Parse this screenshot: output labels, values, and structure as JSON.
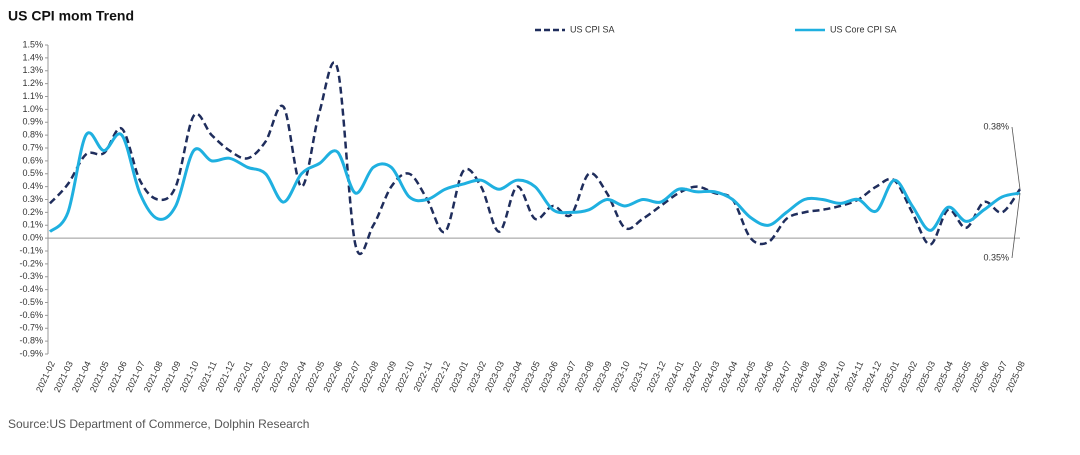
{
  "chart_data": {
    "type": "line",
    "title": "US CPI mom Trend",
    "source": "Source:US Department of Commerce, Dolphin Research",
    "categories": [
      "2021-02",
      "2021-03",
      "2021-04",
      "2021-05",
      "2021-06",
      "2021-07",
      "2021-08",
      "2021-09",
      "2021-10",
      "2021-11",
      "2021-12",
      "2022-01",
      "2022-02",
      "2022-03",
      "2022-04",
      "2022-05",
      "2022-06",
      "2022-07",
      "2022-08",
      "2022-09",
      "2022-10",
      "2022-11",
      "2022-12",
      "2023-01",
      "2023-02",
      "2023-03",
      "2023-04",
      "2023-05",
      "2023-06",
      "2023-07",
      "2023-08",
      "2023-09",
      "2023-10",
      "2023-11",
      "2023-12",
      "2024-01",
      "2024-02",
      "2024-03",
      "2024-04",
      "2024-05",
      "2024-06",
      "2024-07",
      "2024-08",
      "2024-09",
      "2024-10",
      "2024-11",
      "2024-12",
      "2025-01",
      "2025-02",
      "2025-03",
      "2025-04",
      "2025-05",
      "2025-06",
      "2025-07",
      "2025-08"
    ],
    "series": [
      {
        "name": "US CPI SA",
        "color": "#1f2d5c",
        "dash": true,
        "values": [
          0.27,
          0.42,
          0.65,
          0.66,
          0.85,
          0.45,
          0.3,
          0.4,
          0.95,
          0.8,
          0.68,
          0.62,
          0.75,
          1.02,
          0.4,
          0.98,
          1.32,
          -0.05,
          0.1,
          0.4,
          0.5,
          0.3,
          0.05,
          0.52,
          0.4,
          0.05,
          0.4,
          0.15,
          0.25,
          0.18,
          0.5,
          0.35,
          0.08,
          0.15,
          0.25,
          0.35,
          0.4,
          0.35,
          0.3,
          0.0,
          -0.03,
          0.15,
          0.2,
          0.22,
          0.25,
          0.3,
          0.4,
          0.45,
          0.2,
          -0.05,
          0.22,
          0.08,
          0.28,
          0.2,
          0.38
        ],
        "value_labels": [
          null,
          null,
          null,
          null,
          null,
          null,
          null,
          null,
          null,
          null,
          null,
          null,
          null,
          null,
          null,
          null,
          null,
          null,
          null,
          null,
          null,
          null,
          null,
          null,
          null,
          null,
          null,
          null,
          null,
          null,
          null,
          null,
          null,
          null,
          null,
          null,
          null,
          null,
          null,
          null,
          null,
          null,
          null,
          null,
          null,
          null,
          null,
          null,
          null,
          null,
          null,
          null,
          null,
          null,
          "0.38%"
        ]
      },
      {
        "name": "US Core CPI SA",
        "color": "#1fb0e0",
        "dash": false,
        "values": [
          0.05,
          0.2,
          0.8,
          0.68,
          0.8,
          0.35,
          0.15,
          0.25,
          0.68,
          0.6,
          0.62,
          0.55,
          0.5,
          0.28,
          0.5,
          0.58,
          0.67,
          0.35,
          0.55,
          0.55,
          0.32,
          0.3,
          0.38,
          0.42,
          0.45,
          0.38,
          0.45,
          0.4,
          0.22,
          0.2,
          0.22,
          0.3,
          0.25,
          0.3,
          0.28,
          0.38,
          0.36,
          0.36,
          0.3,
          0.16,
          0.1,
          0.2,
          0.3,
          0.3,
          0.27,
          0.3,
          0.21,
          0.45,
          0.25,
          0.06,
          0.24,
          0.13,
          0.22,
          0.32,
          0.35
        ],
        "value_labels": [
          null,
          null,
          null,
          null,
          null,
          null,
          null,
          null,
          null,
          null,
          null,
          null,
          null,
          null,
          null,
          null,
          null,
          null,
          null,
          null,
          null,
          null,
          null,
          null,
          null,
          null,
          null,
          null,
          null,
          null,
          null,
          null,
          null,
          null,
          null,
          null,
          null,
          null,
          null,
          null,
          null,
          null,
          null,
          null,
          null,
          null,
          null,
          null,
          null,
          null,
          null,
          null,
          null,
          null,
          "0.35%"
        ]
      }
    ],
    "ylim": [
      -0.9,
      1.5
    ],
    "yticks": [
      {
        "value": 1.5,
        "label": "1.5%"
      },
      {
        "value": 1.4,
        "label": "1.4%"
      },
      {
        "value": 1.3,
        "label": "1.3%"
      },
      {
        "value": 1.2,
        "label": "1.2%"
      },
      {
        "value": 1.1,
        "label": "1.1%"
      },
      {
        "value": 1.0,
        "label": "1.0%"
      },
      {
        "value": 0.9,
        "label": "0.9%"
      },
      {
        "value": 0.8,
        "label": "0.8%"
      },
      {
        "value": 0.7,
        "label": "0.7%"
      },
      {
        "value": 0.6,
        "label": "0.6%"
      },
      {
        "value": 0.5,
        "label": "0.5%"
      },
      {
        "value": 0.4,
        "label": "0.4%"
      },
      {
        "value": 0.3,
        "label": "0.3%"
      },
      {
        "value": 0.2,
        "label": "0.2%"
      },
      {
        "value": 0.1,
        "label": "0.1%"
      },
      {
        "value": 0,
        "label": "0.0%"
      },
      {
        "value": -0.1,
        "label": "-0.1%"
      },
      {
        "value": -0.2,
        "label": "-0.2%"
      },
      {
        "value": -0.3,
        "label": "-0.3%"
      },
      {
        "value": -0.4,
        "label": "-0.4%"
      },
      {
        "value": -0.5,
        "label": "-0.5%"
      },
      {
        "value": -0.6,
        "label": "-0.6%"
      },
      {
        "value": -0.7,
        "label": "-0.7%"
      },
      {
        "value": -0.8,
        "label": "-0.8%"
      },
      {
        "value": -0.9,
        "label": "-0.9%"
      }
    ],
    "grid": false
  }
}
